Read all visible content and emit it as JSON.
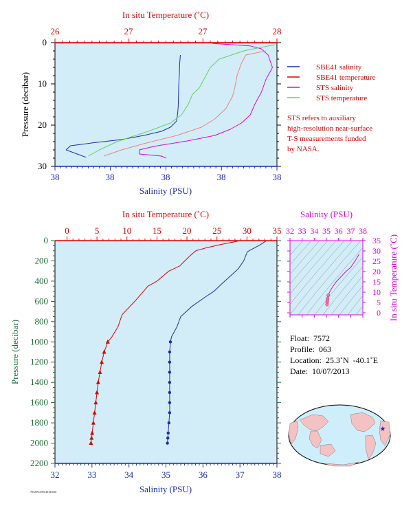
{
  "colors": {
    "panel_bg": "#d2edf7",
    "red": "#dd0000",
    "blue": "#1a2bb0",
    "magenta": "#e000e0",
    "green": "#66cc66",
    "salmon": "#f08080",
    "axis_green": "#1d6b37",
    "axis_blue": "#1a2bb0",
    "ts_contour": "#7f8f8f"
  },
  "chart_data": [
    {
      "id": "top",
      "type": "line",
      "top_axis_label": "In situ Temperature (˚C)",
      "top_ticks": [
        "26",
        "27",
        "27",
        "28"
      ],
      "bottom_axis_label": "Salinity (PSU)",
      "bottom_ticks": [
        "38",
        "38",
        "38",
        "38",
        "38"
      ],
      "ylabel": "Pressure (decibar)",
      "ylim": [
        0,
        30
      ],
      "y_ticks": [
        "0",
        "10",
        "20",
        "30"
      ],
      "legend": [
        {
          "label": "SBE41 salinity",
          "color": "#1a2bb0"
        },
        {
          "label": "SBE41 temperature",
          "color": "#dd0000"
        },
        {
          "label": "STS salinity",
          "color": "#e000e0"
        },
        {
          "label": "STS temperature",
          "color": "#66cc66"
        }
      ],
      "note_lines": [
        "STS refers to auxiliary",
        "high-resolution near-surface",
        "T-S measurements funded",
        "by NASA."
      ],
      "series": [
        {
          "name": "SBE41 salinity",
          "color": "#1a2bb0",
          "x": [
            0.565,
            0.562,
            0.56,
            0.558,
            0.557,
            0.556,
            0.555,
            0.553,
            0.548,
            0.52,
            0.48,
            0.4,
            0.3,
            0.17,
            0.07,
            0.05,
            0.1,
            0.14
          ],
          "y": [
            3,
            5,
            8,
            10,
            12,
            14,
            15.5,
            17,
            19,
            20.5,
            21.5,
            22.5,
            23.5,
            24.3,
            25,
            26,
            27,
            27.8
          ]
        },
        {
          "name": "SBE41 temperature",
          "color": "#dd0000",
          "x": [
            0.0,
            0.7,
            1.0
          ],
          "y": [
            0.1,
            0.1,
            0.1
          ]
        },
        {
          "name": "STS salinity",
          "color": "#e000e0",
          "x": [
            0.71,
            0.88,
            0.93,
            0.96,
            0.98,
            0.95,
            0.93,
            0.9,
            0.88,
            0.84,
            0.79,
            0.72,
            0.6,
            0.45,
            0.38,
            0.38,
            0.48,
            0.5
          ],
          "y": [
            0.2,
            0.8,
            1.5,
            3,
            6,
            9,
            12,
            15,
            17.5,
            19.5,
            21,
            22.5,
            23.8,
            25.1,
            26,
            27,
            27.5,
            28
          ]
        },
        {
          "name": "STS temperature",
          "color": "#66cc66",
          "x": [
            0.99,
            0.85,
            0.74,
            0.7,
            0.67,
            0.65,
            0.62,
            0.6,
            0.57,
            0.52,
            0.42,
            0.28,
            0.2,
            0.15
          ],
          "y": [
            0.5,
            2,
            4,
            6,
            9,
            11,
            12.5,
            15,
            17.5,
            19.5,
            21.5,
            24,
            26,
            27.5
          ]
        },
        {
          "name": "STS temperature",
          "color": "#f08080",
          "x": [
            0.95,
            0.86,
            0.84,
            0.82,
            0.81,
            0.8,
            0.77,
            0.72,
            0.66,
            0.55,
            0.4,
            0.3,
            0.22
          ],
          "y": [
            2,
            3,
            5,
            8,
            11,
            13,
            16,
            18.5,
            20.5,
            22.5,
            24.5,
            26,
            27.5
          ]
        }
      ]
    },
    {
      "id": "bottom",
      "type": "line",
      "top_axis_label": "In situ Temperature (˚C)",
      "xlabel": "Salinity (PSU)",
      "ylabel": "Pressure (decibar)",
      "temp_lim": [
        -2,
        35
      ],
      "temp_ticks": [
        0,
        5,
        10,
        15,
        20,
        25,
        30,
        35
      ],
      "sal_lim": [
        32,
        38
      ],
      "sal_ticks": [
        32,
        33,
        34,
        35,
        36,
        37,
        38
      ],
      "ylim": [
        0,
        2200
      ],
      "y_ticks": [
        0,
        200,
        400,
        600,
        800,
        1000,
        1200,
        1400,
        1600,
        1800,
        2000,
        2200
      ],
      "series": [
        {
          "name": "temperature",
          "color": "#dd0000",
          "markers": "triangle",
          "x": [
            28.5,
            25.5,
            23,
            21.5,
            20.5,
            18.8,
            17,
            15,
            13.5,
            11.3,
            9.2,
            8.5,
            7.5,
            6.8,
            6.2,
            5.8,
            5.5,
            5.2,
            5.0,
            4.8,
            4.6,
            4.4,
            4.2,
            4.1,
            4.0
          ],
          "y": [
            5,
            40,
            75,
            100,
            150,
            250,
            300,
            400,
            450,
            600,
            730,
            850,
            950,
            1000,
            1100,
            1200,
            1300,
            1400,
            1500,
            1600,
            1700,
            1800,
            1900,
            1950,
            2000
          ],
          "marker_start_index": 13
        },
        {
          "name": "salinity",
          "color": "#1a2bb0",
          "markers": "dot",
          "x": [
            37.7,
            37.55,
            37.2,
            37.1,
            36.95,
            36.8,
            36.5,
            36.3,
            36.05,
            35.7,
            35.4,
            35.3,
            35.15,
            35.12,
            35.1,
            35.1,
            35.1,
            35.1,
            35.1,
            35.1,
            35.1,
            35.08,
            35.06,
            35.05,
            35.04
          ],
          "y": [
            5,
            40,
            110,
            200,
            280,
            330,
            430,
            500,
            560,
            650,
            750,
            850,
            950,
            1000,
            1100,
            1200,
            1300,
            1400,
            1500,
            1600,
            1700,
            1800,
            1900,
            1950,
            2000
          ],
          "marker_start_index": 13
        }
      ]
    },
    {
      "id": "ts",
      "type": "scatter",
      "top_axis_label": "Salinity (PSU)",
      "right_axis_label": "In situ Temperature (˚C)",
      "sal_lim": [
        32,
        38
      ],
      "sal_ticks": [
        32,
        33,
        34,
        35,
        36,
        37,
        38
      ],
      "temp_lim": [
        -1,
        35
      ],
      "temp_ticks": [
        0,
        5,
        10,
        15,
        20,
        25,
        30,
        35
      ],
      "series": [
        {
          "name": "profile",
          "color": "#e000e0",
          "x": [
            37.7,
            37.4,
            37.0,
            36.6,
            36.2,
            35.8,
            35.5,
            35.3,
            35.15,
            35.1,
            35.08,
            35.06,
            35.05
          ],
          "y": [
            28.5,
            25.5,
            22,
            20,
            17.5,
            15,
            12.5,
            10.5,
            8.5,
            7,
            6,
            5,
            4
          ]
        }
      ]
    }
  ],
  "info": {
    "float": "Float:  7572",
    "profile": "Profile:  063",
    "location": "Location:  25.3˚N  -40.1˚E",
    "date": "Date:  10/07/2013"
  },
  "footer_tag": "7572 PLOTS 20131016"
}
